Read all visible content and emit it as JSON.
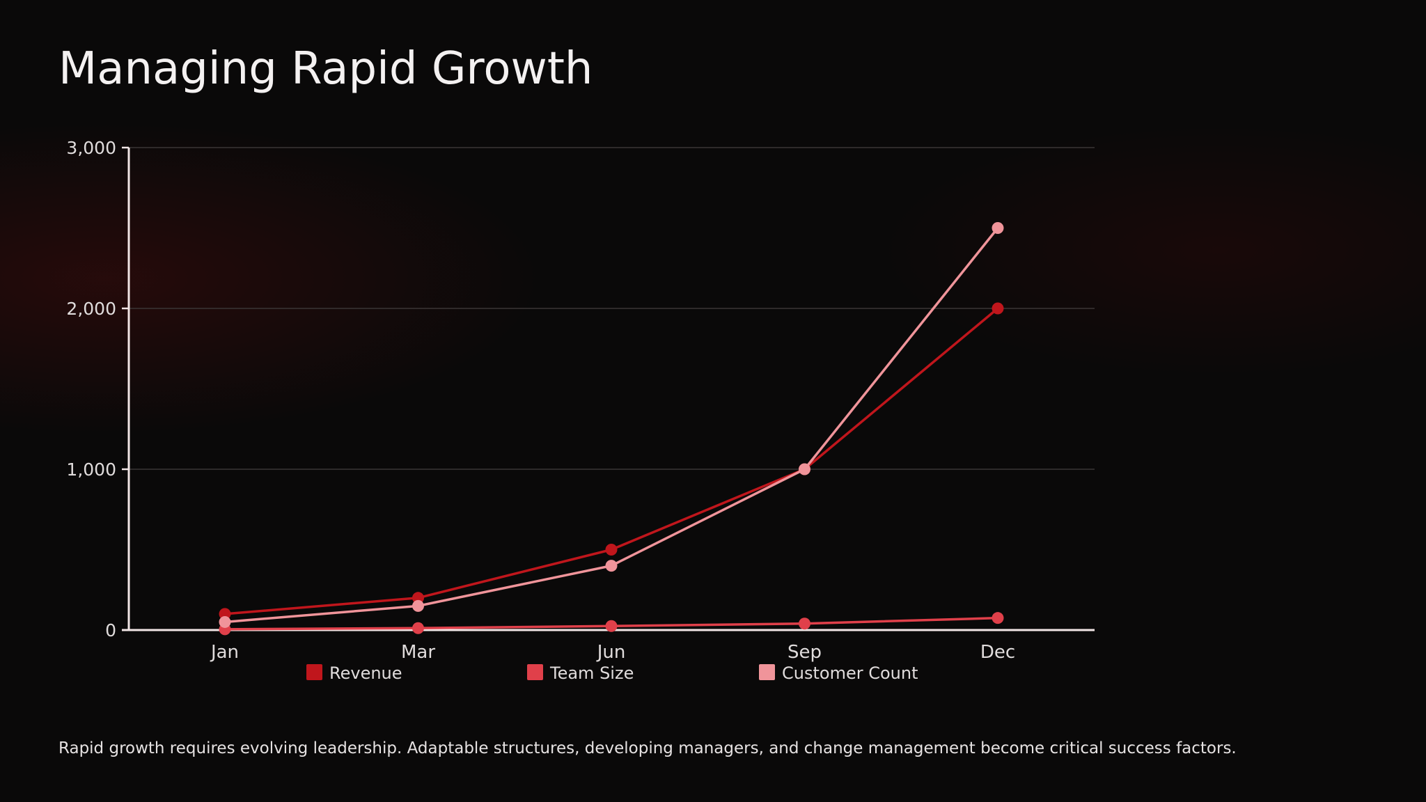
{
  "slide": {
    "title": "Managing Rapid Growth",
    "caption": "Rapid growth requires evolving leadership. Adaptable structures, developing managers, and change management become critical success factors."
  },
  "colors": {
    "background": "#0a0909",
    "revenue": "#c0161c",
    "team_size": "#e0404a",
    "customer_count": "#f0949a",
    "axis": "#f2e6e6",
    "grid": "#3a3535"
  },
  "chart_data": {
    "type": "line",
    "categories": [
      "Jan",
      "Mar",
      "Jun",
      "Sep",
      "Dec"
    ],
    "ylim": [
      0,
      3000
    ],
    "yticks": [
      0,
      1000,
      2000,
      3000
    ],
    "ytick_labels": [
      "0",
      "1,000",
      "2,000",
      "3,000"
    ],
    "grid": true,
    "legend_position": "bottom",
    "series": [
      {
        "name": "Revenue",
        "color": "#c0161c",
        "values": [
          100,
          200,
          500,
          1000,
          2000
        ]
      },
      {
        "name": "Team Size",
        "color": "#e0404a",
        "values": [
          5,
          12,
          25,
          40,
          75
        ]
      },
      {
        "name": "Customer Count",
        "color": "#f0949a",
        "values": [
          50,
          150,
          400,
          1000,
          2500
        ]
      }
    ]
  }
}
